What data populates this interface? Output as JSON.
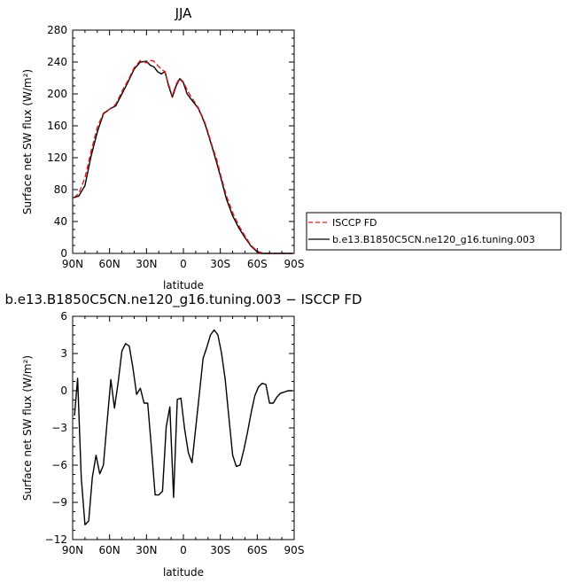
{
  "chart_data": [
    {
      "type": "line",
      "title": "JJA",
      "xlabel": "latitude",
      "ylabel": "Surface net SW flux (W/m²)",
      "xlim": [
        90,
        -90
      ],
      "ylim": [
        0,
        280
      ],
      "x_ticks": [
        90,
        60,
        30,
        0,
        -30,
        -60,
        -90
      ],
      "x_tick_labels": [
        "90N",
        "60N",
        "30N",
        "0",
        "30S",
        "60S",
        "90S"
      ],
      "y_ticks": [
        0,
        40,
        80,
        120,
        160,
        200,
        240,
        280
      ],
      "y_tick_labels": [
        "0",
        "40",
        "80",
        "120",
        "160",
        "200",
        "240",
        "280"
      ],
      "legend_position": "right",
      "series": [
        {
          "name": "ISCCP FD",
          "color": "#e31a1c",
          "dash": true,
          "x": [
            89,
            85,
            80,
            75,
            70,
            65,
            60,
            55,
            50,
            45,
            40,
            35,
            30,
            27,
            24,
            21,
            18,
            15,
            12,
            9,
            6,
            3,
            0,
            -3,
            -6,
            -9,
            -12,
            -15,
            -18,
            -21,
            -24,
            -27,
            -30,
            -35,
            -40,
            -45,
            -50,
            -55,
            -60,
            -63,
            -66,
            -70,
            -75,
            -80,
            -85,
            -89
          ],
          "y": [
            70,
            75,
            95,
            128,
            158,
            176,
            181,
            187,
            203,
            217,
            233,
            242,
            239,
            242,
            241,
            236,
            231,
            228,
            212,
            198,
            212,
            220,
            215,
            205,
            197,
            190,
            183,
            173,
            162,
            147,
            132,
            118,
            100,
            72,
            51,
            35,
            22,
            10,
            3,
            1,
            0,
            0,
            0,
            0,
            0,
            0
          ]
        },
        {
          "name": "b.e13.B1850C5CN.ne120_g16.tuning.003",
          "color": "#000000",
          "dash": false,
          "x": [
            89,
            85,
            80,
            75,
            70,
            65,
            60,
            55,
            50,
            45,
            40,
            35,
            30,
            27,
            24,
            21,
            18,
            15,
            12,
            9,
            6,
            3,
            0,
            -3,
            -6,
            -9,
            -12,
            -15,
            -18,
            -21,
            -24,
            -27,
            -30,
            -35,
            -40,
            -45,
            -50,
            -55,
            -60,
            -63,
            -66,
            -70,
            -75,
            -80,
            -85,
            -89
          ],
          "y": [
            70,
            72,
            85,
            122,
            152,
            175,
            181,
            185,
            200,
            215,
            231,
            240,
            241,
            236,
            234,
            228,
            225,
            228,
            210,
            196,
            210,
            219,
            214,
            200,
            194,
            188,
            182,
            172,
            160,
            145,
            130,
            114,
            97,
            68,
            47,
            32,
            20,
            9,
            2,
            0,
            0,
            0,
            0,
            0,
            0,
            0
          ]
        }
      ]
    },
    {
      "type": "line",
      "title": "b.e13.B1850C5CN.ne120_g16.tuning.003 − ISCCP FD",
      "xlabel": "latitude",
      "ylabel": "Surface net SW flux (W/m²)",
      "xlim": [
        90,
        -90
      ],
      "ylim": [
        -12,
        6
      ],
      "x_ticks": [
        90,
        60,
        30,
        0,
        -30,
        -60,
        -90
      ],
      "x_tick_labels": [
        "90N",
        "60N",
        "30N",
        "0",
        "30S",
        "60S",
        "90S"
      ],
      "y_ticks": [
        -12,
        -9,
        -6,
        -3,
        0,
        3,
        6
      ],
      "y_tick_labels": [
        "−12",
        "−9",
        "−6",
        "−3",
        "0",
        "3",
        "6"
      ],
      "series": [
        {
          "color": "#000000",
          "x": [
            88.5,
            86,
            83,
            80,
            77,
            74,
            71,
            68,
            65,
            62,
            59,
            56,
            53,
            50,
            47,
            44,
            41,
            38,
            35,
            32,
            29,
            26,
            23,
            20,
            17,
            14,
            11,
            8,
            5,
            2,
            -1,
            -4,
            -7,
            -10,
            -13,
            -16,
            -19,
            -22,
            -25,
            -28,
            -31,
            -34,
            -37,
            -40,
            -43,
            -46,
            -49,
            -52,
            -55,
            -58,
            -61,
            -64,
            -67,
            -70,
            -73,
            -76,
            -79,
            -82,
            -85,
            -88.5
          ],
          "y": [
            -2,
            1,
            -7,
            -10.8,
            -10.5,
            -7,
            -5.2,
            -6.7,
            -6,
            -2.5,
            0.9,
            -1.4,
            0.7,
            3.2,
            3.8,
            3.6,
            1.8,
            -0.3,
            0.2,
            -1,
            -1,
            -4.6,
            -8.4,
            -8.4,
            -8.1,
            -2.9,
            -1.3,
            -8.6,
            -0.7,
            -0.6,
            -3.1,
            -5,
            -5.8,
            -3,
            -0.2,
            2.6,
            3.5,
            4.5,
            4.9,
            4.5,
            3,
            0.9,
            -2.2,
            -5.2,
            -6.1,
            -6,
            -4.8,
            -3.4,
            -1.8,
            -0.4,
            0.3,
            0.6,
            0.5,
            -1,
            -1,
            -0.5,
            -0.2,
            -0.1,
            0,
            0
          ]
        }
      ]
    }
  ]
}
